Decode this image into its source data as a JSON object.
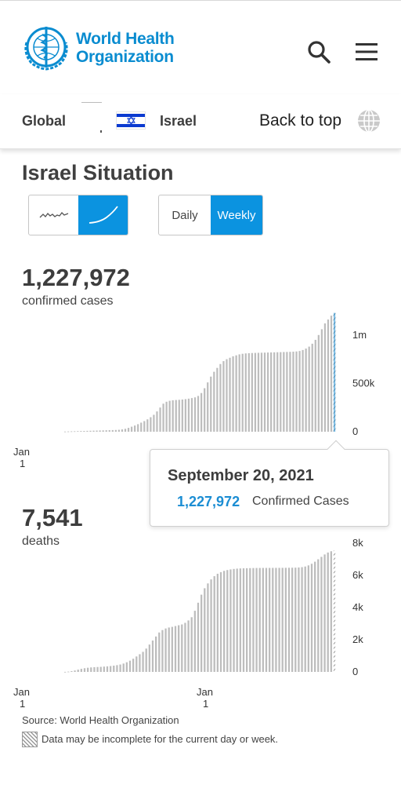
{
  "header": {
    "logo_line1": "World Health",
    "logo_line2": "Organization",
    "search_icon": "search-icon",
    "menu_icon": "hamburger-menu-icon"
  },
  "locbar": {
    "global_label": "Global",
    "country_label": "Israel",
    "back_to_top": "Back to top",
    "flag": "israel-flag",
    "globe_icon": "globe-icon"
  },
  "situation": {
    "title": "Israel Situation",
    "chart_modes": [
      "linear-chart-icon",
      "cumulative-chart-icon"
    ],
    "active_chart_mode": 1,
    "period_daily": "Daily",
    "period_weekly": "Weekly",
    "active_period": "Weekly"
  },
  "cases": {
    "total": "1,227,972",
    "label": "confirmed cases"
  },
  "deaths": {
    "total": "7,541",
    "label": "deaths"
  },
  "tooltip": {
    "date": "September 20, 2021",
    "value": "1,227,972",
    "label": "Confirmed Cases"
  },
  "colors": {
    "accent": "#0b93e0",
    "bar": "#bdbdbd",
    "highlight": "#1b8dd3",
    "logo": "#0a8cd0"
  },
  "chart_data": [
    {
      "type": "bar",
      "title": "confirmed cases",
      "ylim": [
        0,
        1250000
      ],
      "y_ticks": [
        "0",
        "500k",
        "1m"
      ],
      "y_tick_values": [
        0,
        500000,
        1000000
      ],
      "x_tick_labels": [
        [
          "Jan",
          "1"
        ]
      ],
      "highlight_last": true,
      "values": [
        2000,
        3000,
        4000,
        5000,
        6000,
        7000,
        8000,
        9000,
        10000,
        11000,
        12000,
        13000,
        14000,
        15000,
        16000,
        17000,
        18000,
        20000,
        24000,
        30000,
        40000,
        52000,
        64000,
        78000,
        94000,
        110000,
        128000,
        150000,
        175000,
        210000,
        250000,
        290000,
        310000,
        320000,
        325000,
        328000,
        330000,
        333000,
        337000,
        342000,
        348000,
        355000,
        370000,
        400000,
        450000,
        510000,
        570000,
        620000,
        660000,
        700000,
        730000,
        750000,
        765000,
        780000,
        790000,
        800000,
        806000,
        810000,
        812000,
        814000,
        815000,
        816000,
        817000,
        818000,
        819000,
        820000,
        821000,
        822000,
        823000,
        824000,
        825000,
        826000,
        828000,
        830000,
        835000,
        845000,
        860000,
        880000,
        910000,
        950000,
        1000000,
        1060000,
        1120000,
        1160000,
        1200000,
        1227972
      ]
    },
    {
      "type": "bar",
      "title": "deaths",
      "ylim": [
        0,
        8000
      ],
      "y_ticks": [
        "0",
        "2k",
        "4k",
        "6k",
        "8k"
      ],
      "y_tick_values": [
        0,
        2000,
        4000,
        6000,
        8000
      ],
      "x_tick_labels": [
        [
          "Jan",
          "1"
        ],
        [
          "Jan",
          "1"
        ]
      ],
      "values": [
        5,
        20,
        50,
        90,
        140,
        190,
        230,
        260,
        280,
        295,
        305,
        315,
        330,
        345,
        365,
        390,
        420,
        460,
        520,
        600,
        700,
        820,
        960,
        1100,
        1250,
        1450,
        1700,
        1950,
        2200,
        2450,
        2600,
        2700,
        2760,
        2800,
        2850,
        2900,
        2950,
        3050,
        3200,
        3400,
        3800,
        4300,
        4800,
        5200,
        5500,
        5750,
        5950,
        6100,
        6200,
        6280,
        6330,
        6370,
        6400,
        6420,
        6430,
        6440,
        6445,
        6450,
        6455,
        6458,
        6460,
        6462,
        6463,
        6464,
        6465,
        6466,
        6467,
        6468,
        6470,
        6472,
        6475,
        6480,
        6490,
        6510,
        6550,
        6620,
        6720,
        6850,
        7000,
        7150,
        7300,
        7420,
        7500,
        7541
      ]
    }
  ],
  "footer": {
    "source": "Source: World Health Organization",
    "note": "Data may be incomplete for the current day or week."
  }
}
